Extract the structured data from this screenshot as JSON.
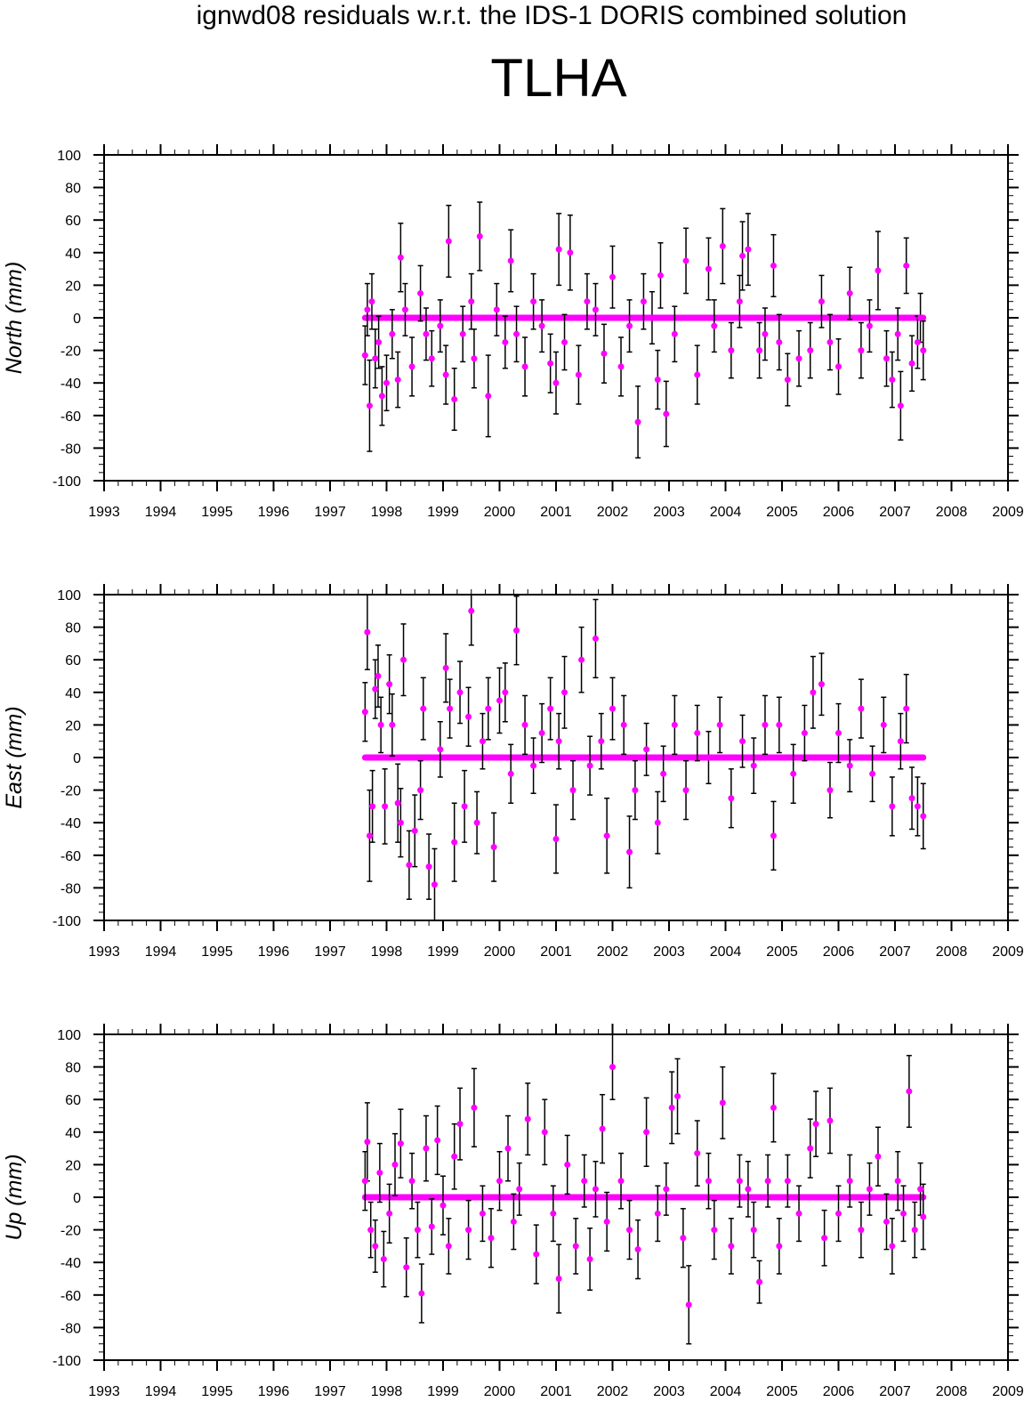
{
  "figure": {
    "title": "ignwd08 residuals w.r.t. the IDS-1 DORIS combined solution",
    "station": "TLHA"
  },
  "colors": {
    "points": "#ff00ff",
    "errorbars": "#000000",
    "axes": "#000000"
  },
  "chart_data": [
    {
      "type": "scatter",
      "ylabel": "North (mm)",
      "xlim": [
        1993,
        2009
      ],
      "ylim": [
        -100,
        100
      ],
      "x_ticks": [
        1993,
        1994,
        1995,
        1996,
        1997,
        1998,
        1999,
        2000,
        2001,
        2002,
        2003,
        2004,
        2005,
        2006,
        2007,
        2008,
        2009
      ],
      "y_ticks": [
        -100,
        -80,
        -60,
        -40,
        -20,
        0,
        20,
        40,
        60,
        80,
        100
      ],
      "series": [
        {
          "x": [
            1997.62,
            1997.66,
            1997.7,
            1997.74,
            1997.8,
            1997.86,
            1997.92,
            1998.0,
            1998.1,
            1998.2,
            1998.25,
            1998.33,
            1998.45,
            1998.6,
            1998.7,
            1998.8,
            1998.95,
            1999.05,
            1999.1,
            1999.2,
            1999.35,
            1999.5,
            1999.55,
            1999.65,
            1999.8,
            1999.95,
            2000.1,
            2000.2,
            2000.3,
            2000.45,
            2000.6,
            2000.75,
            2000.9,
            2001.0,
            2001.05,
            2001.15,
            2001.25,
            2001.4,
            2001.55,
            2001.7,
            2001.85,
            2002.0,
            2002.15,
            2002.3,
            2002.45,
            2002.55,
            2002.7,
            2002.8,
            2002.85,
            2002.95,
            2003.1,
            2003.3,
            2003.5,
            2003.7,
            2003.8,
            2003.95,
            2004.1,
            2004.25,
            2004.3,
            2004.4,
            2004.6,
            2004.7,
            2004.85,
            2004.95,
            2005.1,
            2005.3,
            2005.5,
            2005.7,
            2005.85,
            2006.0,
            2006.2,
            2006.4,
            2006.55,
            2006.7,
            2006.85,
            2006.95,
            2007.05,
            2007.1,
            2007.2,
            2007.3,
            2007.4,
            2007.45,
            2007.5
          ],
          "y": [
            -23,
            5,
            -54,
            10,
            -25,
            -15,
            -48,
            -40,
            -10,
            -38,
            37,
            5,
            -30,
            15,
            -10,
            -25,
            -5,
            -35,
            47,
            -50,
            -10,
            10,
            -25,
            50,
            -48,
            5,
            -15,
            35,
            -10,
            -30,
            10,
            -5,
            -28,
            -40,
            42,
            -15,
            40,
            -35,
            10,
            5,
            -22,
            25,
            -30,
            -5,
            -64,
            10,
            0,
            -38,
            26,
            -59,
            -10,
            35,
            -35,
            30,
            -5,
            44,
            -20,
            10,
            38,
            42,
            -20,
            -10,
            32,
            -15,
            -38,
            -25,
            -20,
            10,
            -15,
            -30,
            15,
            -20,
            -5,
            29,
            -25,
            -38,
            -10,
            -54,
            32,
            -28,
            -15,
            0,
            -20
          ],
          "yerr": [
            18,
            16,
            28,
            17,
            18,
            16,
            18,
            17,
            15,
            17,
            21,
            16,
            18,
            17,
            16,
            17,
            16,
            18,
            22,
            19,
            17,
            17,
            18,
            21,
            25,
            16,
            16,
            19,
            17,
            18,
            17,
            16,
            18,
            19,
            22,
            17,
            23,
            18,
            17,
            16,
            18,
            19,
            18,
            16,
            22,
            17,
            16,
            18,
            20,
            20,
            17,
            20,
            18,
            19,
            16,
            23,
            17,
            16,
            21,
            22,
            17,
            16,
            19,
            17,
            16,
            17,
            17,
            16,
            17,
            17,
            16,
            17,
            16,
            24,
            17,
            17,
            16,
            21,
            17,
            17,
            16,
            15,
            18
          ]
        }
      ]
    },
    {
      "type": "scatter",
      "ylabel": "East (mm)",
      "xlim": [
        1993,
        2009
      ],
      "ylim": [
        -100,
        100
      ],
      "x_ticks": [
        1993,
        1994,
        1995,
        1996,
        1997,
        1998,
        1999,
        2000,
        2001,
        2002,
        2003,
        2004,
        2005,
        2006,
        2007,
        2008,
        2009
      ],
      "y_ticks": [
        -100,
        -80,
        -60,
        -40,
        -20,
        0,
        20,
        40,
        60,
        80,
        100
      ],
      "series": [
        {
          "x": [
            1997.62,
            1997.66,
            1997.7,
            1997.75,
            1997.8,
            1997.85,
            1997.9,
            1997.97,
            1998.05,
            1998.1,
            1998.2,
            1998.25,
            1998.3,
            1998.4,
            1998.5,
            1998.6,
            1998.65,
            1998.75,
            1998.85,
            1998.95,
            1999.05,
            1999.12,
            1999.2,
            1999.3,
            1999.38,
            1999.45,
            1999.5,
            1999.6,
            1999.7,
            1999.8,
            1999.9,
            2000.0,
            2000.1,
            2000.2,
            2000.3,
            2000.45,
            2000.6,
            2000.75,
            2000.9,
            2001.0,
            2001.05,
            2001.15,
            2001.3,
            2001.45,
            2001.6,
            2001.7,
            2001.8,
            2001.9,
            2002.0,
            2002.2,
            2002.3,
            2002.4,
            2002.6,
            2002.8,
            2002.9,
            2003.1,
            2003.3,
            2003.5,
            2003.7,
            2003.9,
            2004.1,
            2004.3,
            2004.5,
            2004.7,
            2004.85,
            2004.95,
            2005.2,
            2005.4,
            2005.55,
            2005.7,
            2005.85,
            2006.0,
            2006.2,
            2006.4,
            2006.6,
            2006.8,
            2006.95,
            2007.1,
            2007.2,
            2007.3,
            2007.4,
            2007.5
          ],
          "y": [
            28,
            77,
            -48,
            -30,
            42,
            50,
            20,
            -30,
            45,
            20,
            -28,
            -40,
            60,
            -66,
            -45,
            -20,
            30,
            -67,
            -78,
            5,
            55,
            30,
            -52,
            40,
            -30,
            25,
            90,
            -40,
            10,
            30,
            -55,
            35,
            40,
            -10,
            78,
            20,
            -5,
            15,
            30,
            -50,
            10,
            40,
            -20,
            60,
            -5,
            73,
            10,
            -48,
            30,
            20,
            -58,
            -20,
            5,
            -40,
            -10,
            20,
            -20,
            15,
            0,
            20,
            -25,
            10,
            -5,
            20,
            -48,
            20,
            -10,
            15,
            40,
            45,
            -20,
            15,
            -5,
            30,
            -10,
            20,
            -30,
            10,
            30,
            -25,
            -30,
            -36
          ],
          "yerr": [
            18,
            23,
            28,
            22,
            18,
            19,
            17,
            23,
            18,
            19,
            24,
            21,
            22,
            21,
            22,
            18,
            19,
            20,
            22,
            17,
            21,
            18,
            24,
            19,
            22,
            18,
            21,
            19,
            17,
            19,
            21,
            20,
            18,
            18,
            21,
            18,
            17,
            18,
            19,
            21,
            17,
            22,
            18,
            20,
            18,
            24,
            17,
            23,
            19,
            18,
            22,
            18,
            16,
            19,
            17,
            18,
            18,
            17,
            16,
            17,
            18,
            16,
            17,
            18,
            21,
            17,
            18,
            17,
            22,
            19,
            17,
            18,
            16,
            18,
            17,
            17,
            18,
            17,
            21,
            19,
            18,
            20
          ]
        }
      ]
    },
    {
      "type": "scatter",
      "ylabel": "Up (mm)",
      "xlim": [
        1993,
        2009
      ],
      "ylim": [
        -100,
        100
      ],
      "x_ticks": [
        1993,
        1994,
        1995,
        1996,
        1997,
        1998,
        1999,
        2000,
        2001,
        2002,
        2003,
        2004,
        2005,
        2006,
        2007,
        2008,
        2009
      ],
      "y_ticks": [
        -100,
        -80,
        -60,
        -40,
        -20,
        0,
        20,
        40,
        60,
        80,
        100
      ],
      "series": [
        {
          "x": [
            1997.62,
            1997.66,
            1997.72,
            1997.8,
            1997.88,
            1997.95,
            1998.05,
            1998.15,
            1998.25,
            1998.35,
            1998.45,
            1998.55,
            1998.62,
            1998.7,
            1998.8,
            1998.9,
            1999.0,
            1999.1,
            1999.2,
            1999.3,
            1999.45,
            1999.55,
            1999.7,
            1999.85,
            2000.0,
            2000.15,
            2000.25,
            2000.35,
            2000.5,
            2000.65,
            2000.8,
            2000.95,
            2001.05,
            2001.2,
            2001.35,
            2001.5,
            2001.6,
            2001.7,
            2001.82,
            2001.9,
            2002.0,
            2002.15,
            2002.3,
            2002.45,
            2002.6,
            2002.8,
            2002.95,
            2003.05,
            2003.15,
            2003.25,
            2003.35,
            2003.5,
            2003.7,
            2003.8,
            2003.95,
            2004.1,
            2004.25,
            2004.4,
            2004.5,
            2004.6,
            2004.75,
            2004.85,
            2004.95,
            2005.1,
            2005.3,
            2005.5,
            2005.6,
            2005.75,
            2005.85,
            2006.0,
            2006.2,
            2006.4,
            2006.55,
            2006.7,
            2006.85,
            2006.95,
            2007.05,
            2007.15,
            2007.25,
            2007.35,
            2007.45,
            2007.5
          ],
          "y": [
            10,
            34,
            -20,
            -30,
            15,
            -38,
            -10,
            20,
            33,
            -43,
            10,
            -20,
            -59,
            30,
            -18,
            35,
            -5,
            -30,
            25,
            45,
            -20,
            55,
            -10,
            -25,
            10,
            30,
            -15,
            5,
            48,
            -35,
            40,
            -10,
            -50,
            20,
            -30,
            10,
            -38,
            5,
            42,
            -15,
            80,
            10,
            -20,
            -32,
            40,
            -10,
            5,
            55,
            62,
            -25,
            -66,
            27,
            10,
            -20,
            58,
            -30,
            10,
            5,
            -20,
            -52,
            10,
            55,
            -30,
            10,
            -10,
            30,
            45,
            -25,
            47,
            -10,
            10,
            -20,
            5,
            25,
            -15,
            -30,
            10,
            -10,
            65,
            -20,
            5,
            -12
          ],
          "yerr": [
            18,
            24,
            17,
            16,
            18,
            17,
            18,
            19,
            21,
            18,
            17,
            17,
            18,
            20,
            17,
            21,
            18,
            17,
            20,
            22,
            18,
            24,
            17,
            18,
            18,
            20,
            17,
            16,
            22,
            18,
            20,
            17,
            21,
            18,
            17,
            16,
            19,
            17,
            21,
            18,
            20,
            17,
            18,
            18,
            21,
            17,
            16,
            22,
            23,
            18,
            24,
            20,
            17,
            18,
            22,
            17,
            16,
            17,
            17,
            13,
            16,
            21,
            17,
            16,
            17,
            18,
            20,
            17,
            20,
            17,
            16,
            17,
            16,
            18,
            17,
            17,
            18,
            17,
            22,
            17,
            16,
            20
          ]
        }
      ]
    }
  ]
}
